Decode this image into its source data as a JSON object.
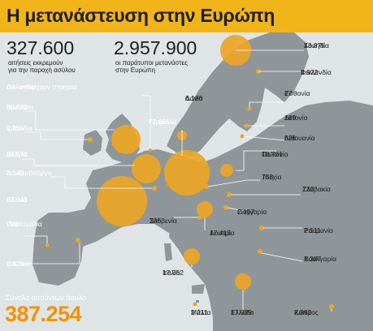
{
  "title": "Η μετανάστευση στην Ευρώπη",
  "stats": {
    "asylum_value": "327.600",
    "asylum_line1": "αιτήσεις εκκρεμούν",
    "asylum_line2": "για την παροχή ασύλου",
    "migrants_value": "2.957.900",
    "migrants_line1": "οι παράτυποι μετανάστες",
    "migrants_line2": "στην Ευρώπη"
  },
  "total": {
    "label": "Σύνολο αιτούντων άσυλο",
    "value": "387.254"
  },
  "colors": {
    "header": "#f1b51a",
    "bubble": "#eda524",
    "total_value": "#f39200",
    "land": "#8f969a",
    "sea": "#dfe4e6"
  },
  "countries": [
    {
      "id": "netherlands",
      "name": "Ολλανδία",
      "name2": "Δεν υπάρχουν στοιχεία",
      "value": null
    },
    {
      "id": "uk",
      "name": "Βρετανία",
      "value": "36.522"
    },
    {
      "id": "ireland",
      "name": "Ιρλανδία",
      "value": "2.256"
    },
    {
      "id": "belgium",
      "name": "Βέλγιο",
      "value": "38.570"
    },
    {
      "id": "luxembourg",
      "name": "Λουξεμβούργο",
      "value": "2.146"
    },
    {
      "id": "france",
      "name": "Γαλλία",
      "value": "97.643"
    },
    {
      "id": "portugal",
      "name": "Πορτογαλία",
      "value": "299"
    },
    {
      "id": "spain",
      "name": "Ισπανία",
      "value": "2.579"
    },
    {
      "id": "denmark",
      "name": "Δανία",
      "value": "6.186"
    },
    {
      "id": "germany",
      "name": "Γερμανία",
      "value": "77.651"
    },
    {
      "id": "sweden",
      "name": "Σουηδία",
      "value": "43.876"
    },
    {
      "id": "finland",
      "name": "Φινλανδία",
      "value": "2.922"
    },
    {
      "id": "estonia",
      "name": "Εσθονία",
      "value": "77"
    },
    {
      "id": "latvia",
      "name": "Λετονία",
      "value": "189"
    },
    {
      "id": "lithuania",
      "name": "Λιθουανία",
      "value": "526"
    },
    {
      "id": "poland",
      "name": "Πολωνία",
      "value": "10.761"
    },
    {
      "id": "czechia",
      "name": "Τσεχία",
      "value": "753"
    },
    {
      "id": "slovakia",
      "name": "Σλοβακία",
      "value": "732"
    },
    {
      "id": "hungary",
      "name": "Ουγγαρία",
      "value": "2.157"
    },
    {
      "id": "romania",
      "name": "Ρουμανία",
      "value": "2.511"
    },
    {
      "id": "bulgaria",
      "name": "Βουλγαρία",
      "value": "1.387"
    },
    {
      "id": "slovenia",
      "name": "Σλοβενία",
      "value": "305"
    },
    {
      "id": "austria",
      "name": "Αυστρία",
      "value": "17.413"
    },
    {
      "id": "italy",
      "name": "Ιταλία",
      "value": "17.352"
    },
    {
      "id": "malta",
      "name": "Μάλτα",
      "value": "2.211"
    },
    {
      "id": "greece",
      "name": "Ελλάδα",
      "value": "17.339"
    },
    {
      "id": "cyprus",
      "name": "Κύπρος",
      "value": "2.892"
    }
  ]
}
